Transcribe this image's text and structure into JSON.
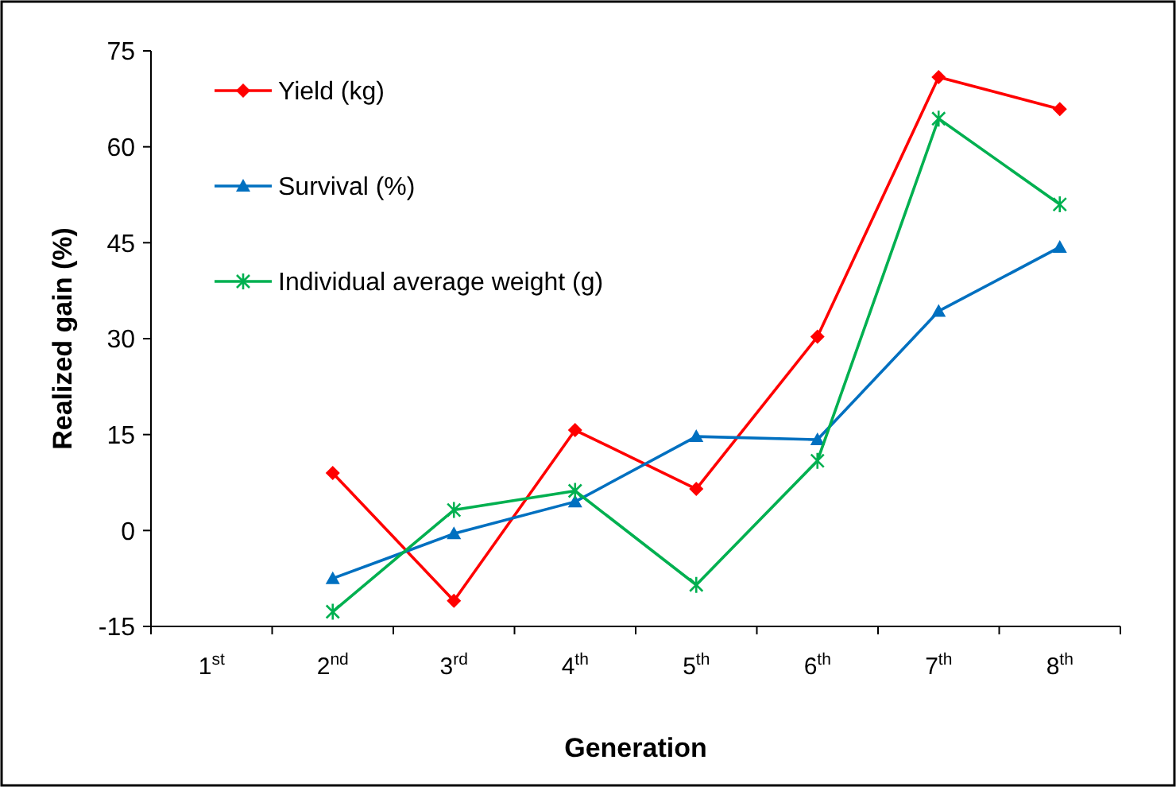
{
  "chart_data": {
    "type": "line",
    "xlabel": "Generation",
    "ylabel": "Realized gain (%)",
    "categories": [
      "1$^{st}$",
      "2$^{nd}$",
      "3$^{rd}$",
      "4$^{th}$",
      "5$^{th}$",
      "6$^{th}$",
      "7$^{th}$",
      "8$^{th}$"
    ],
    "ylim": [
      -15,
      75
    ],
    "yticks": [
      -15,
      0,
      15,
      30,
      45,
      60,
      75
    ],
    "grid": false,
    "legend": "top left",
    "line_style": "solid",
    "series": [
      {
        "name": "Yield (kg)",
        "color": "#ff0000",
        "marker": "diamond",
        "values": [
          null,
          9,
          -11,
          15.7,
          6.5,
          30.3,
          70.9,
          65.9
        ]
      },
      {
        "name": "Survival (%)",
        "color": "#0070c0",
        "marker": "triangle",
        "values": [
          null,
          -7.5,
          -0.5,
          4.5,
          14.7,
          14.2,
          34.3,
          44.3
        ]
      },
      {
        "name": "Individual average weight (g)",
        "color": "#00b050",
        "marker": "cross",
        "values": [
          null,
          -12.7,
          3.2,
          6.2,
          -8.5,
          10.9,
          64.4,
          51
        ]
      }
    ]
  }
}
